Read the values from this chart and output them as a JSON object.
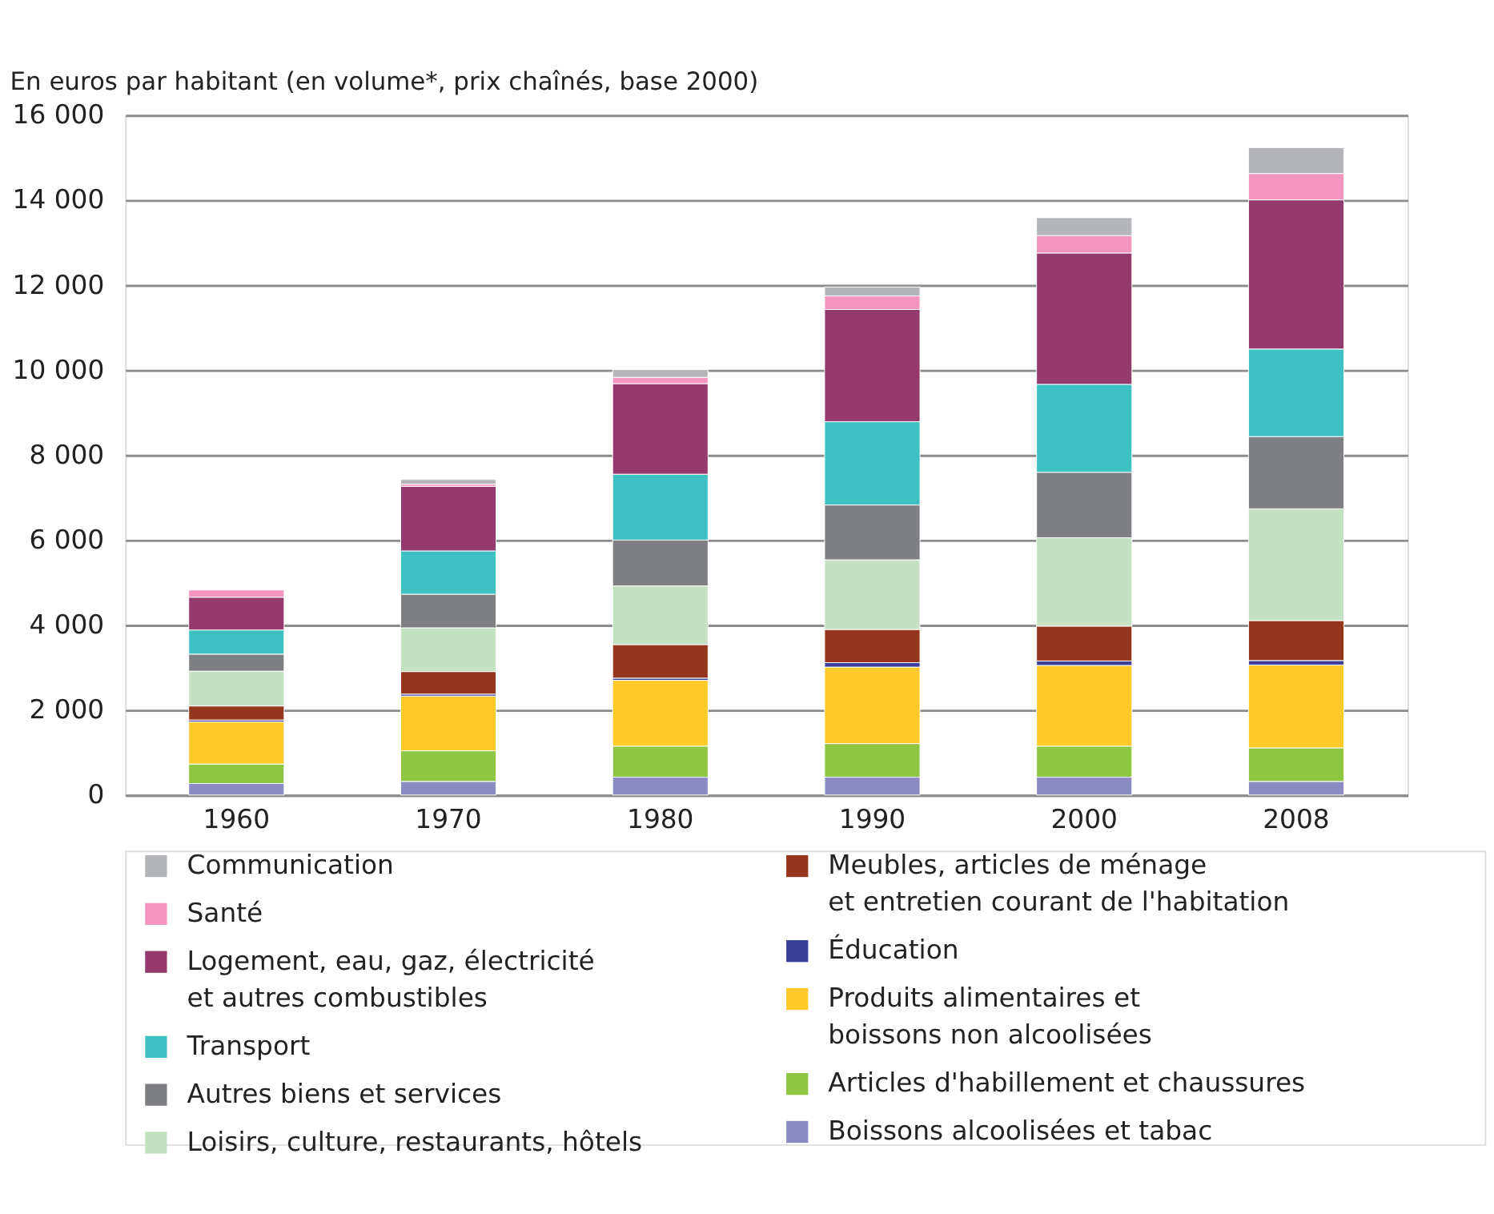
{
  "chart_data": {
    "type": "bar",
    "stacked": true,
    "ylabel": "En euros par habitant (en volume*, prix chaînés, base 2000)",
    "categories": [
      "1960",
      "1970",
      "1980",
      "1990",
      "2000",
      "2008"
    ],
    "ylim": [
      0,
      16000
    ],
    "yticks": [
      {
        "value": 0,
        "label": "0"
      },
      {
        "value": 2000,
        "label": "2 000"
      },
      {
        "value": 4000,
        "label": "4 000"
      },
      {
        "value": 6000,
        "label": "6 000"
      },
      {
        "value": 8000,
        "label": "8 000"
      },
      {
        "value": 10000,
        "label": "10 000"
      },
      {
        "value": 12000,
        "label": "12 000"
      },
      {
        "value": 14000,
        "label": "14 000"
      },
      {
        "value": 16000,
        "label": "16 000"
      }
    ],
    "grid": "y",
    "legend": "bottom",
    "series": [
      {
        "name": "Boissons alcoolisées et tabac",
        "color": "#8b8bc3",
        "values": [
          270,
          320,
          420,
          420,
          420,
          320
        ]
      },
      {
        "name": "Articles d'habillement et chaussures",
        "color": "#8fc641",
        "values": [
          460,
          720,
          730,
          790,
          730,
          790
        ]
      },
      {
        "name": "Produits alimentaires et\nboissons non alcoolisées",
        "color": "#fdca2a",
        "values": [
          990,
          1290,
          1550,
          1800,
          1900,
          1950
        ]
      },
      {
        "name": "Éducation",
        "color": "#3a3f9a",
        "values": [
          45,
          45,
          50,
          105,
          105,
          105
        ]
      },
      {
        "name": "Meubles, articles de ménage\net entretien courant de l'habitation",
        "color": "#96361e",
        "values": [
          330,
          530,
          790,
          780,
          820,
          940
        ]
      },
      {
        "name": "Loisirs, culture, restaurants, hôtels",
        "color": "#c5e1c3",
        "values": [
          820,
          1030,
          1380,
          1640,
          2080,
          2630
        ]
      },
      {
        "name": "Autres biens et services",
        "color": "#7e7f82",
        "values": [
          400,
          790,
          1080,
          1290,
          1540,
          1700
        ]
      },
      {
        "name": "Transport",
        "color": "#3ec1c3",
        "values": [
          570,
          1020,
          1550,
          1960,
          2070,
          2060
        ]
      },
      {
        "name": "Logement, eau, gaz, électricité\net autres combustibles",
        "color": "#943a6c",
        "values": [
          770,
          1520,
          2130,
          2640,
          3090,
          3510
        ]
      },
      {
        "name": "Santé",
        "color": "#f395bd",
        "values": [
          170,
          50,
          150,
          320,
          410,
          620
        ]
      },
      {
        "name": "Communication",
        "color": "#b3b5b8",
        "values": [
          null,
          110,
          180,
          210,
          420,
          610
        ]
      }
    ]
  }
}
